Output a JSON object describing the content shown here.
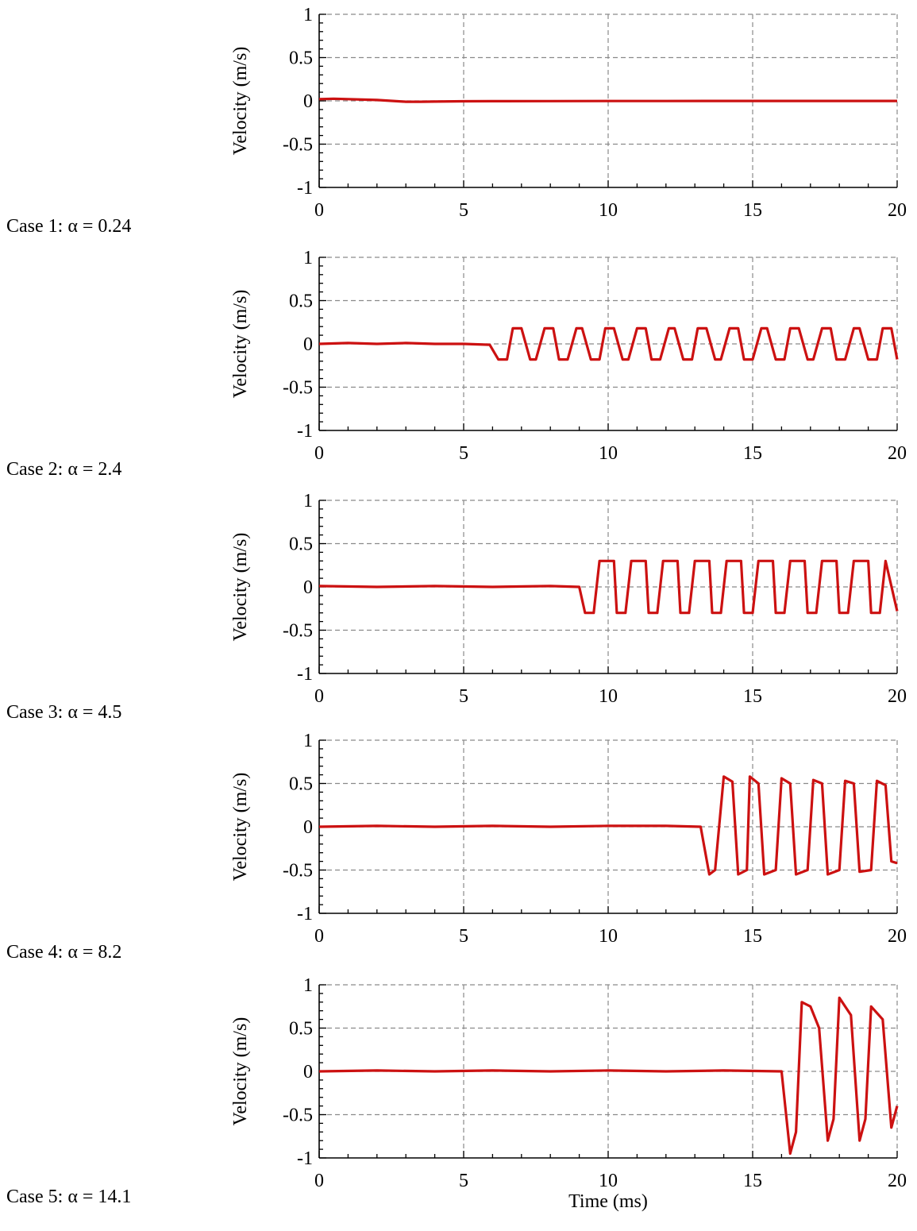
{
  "chart_data": [
    {
      "type": "line",
      "case_label": "Case 1: α = 0.24",
      "ylabel": "Velocity (m/s)",
      "xlabel": "",
      "xlim": [
        0,
        20
      ],
      "ylim": [
        -1,
        1
      ],
      "xticks": [
        0,
        5,
        10,
        15,
        20
      ],
      "yticks": [
        -1,
        -0.5,
        0,
        0.5,
        1
      ],
      "ytick_labels": [
        "-1",
        "-0.5",
        "0",
        "0.5",
        "1"
      ],
      "grid": true,
      "series": [
        {
          "color": "#cc1111",
          "x": [
            0,
            0.5,
            1,
            1.5,
            2,
            2.5,
            3,
            3.5,
            4,
            5,
            6,
            8,
            10,
            12,
            14,
            16,
            18,
            20
          ],
          "y": [
            0.02,
            0.025,
            0.02,
            0.015,
            0.01,
            0.0,
            -0.01,
            -0.01,
            -0.008,
            -0.005,
            -0.004,
            -0.003,
            -0.002,
            -0.002,
            -0.001,
            -0.001,
            -0.001,
            -0.001
          ]
        }
      ]
    },
    {
      "type": "line",
      "case_label": "Case 2: α = 2.4",
      "ylabel": "Velocity (m/s)",
      "xlabel": "",
      "xlim": [
        0,
        20
      ],
      "ylim": [
        -1,
        1
      ],
      "xticks": [
        0,
        5,
        10,
        15,
        20
      ],
      "yticks": [
        -1,
        -0.5,
        0,
        0.5,
        1
      ],
      "ytick_labels": [
        "-1",
        "-0.5",
        "0",
        "0.5",
        "1"
      ],
      "grid": true,
      "series": [
        {
          "color": "#cc1111",
          "x": [
            0,
            1,
            2,
            3,
            4,
            5,
            5.9,
            6.2,
            6.5,
            6.7,
            7.0,
            7.3,
            7.5,
            7.8,
            8.1,
            8.3,
            8.6,
            8.9,
            9.1,
            9.4,
            9.7,
            9.9,
            10.2,
            10.5,
            10.7,
            11.0,
            11.3,
            11.5,
            11.8,
            12.1,
            12.3,
            12.6,
            12.9,
            13.1,
            13.4,
            13.7,
            13.9,
            14.2,
            14.5,
            14.7,
            15.0,
            15.3,
            15.5,
            15.8,
            16.1,
            16.3,
            16.6,
            16.9,
            17.1,
            17.4,
            17.7,
            17.9,
            18.2,
            18.5,
            18.7,
            19.0,
            19.3,
            19.5,
            19.8,
            20.0
          ],
          "y": [
            0.0,
            0.01,
            0.0,
            0.01,
            0.0,
            0.0,
            -0.01,
            -0.18,
            -0.18,
            0.18,
            0.18,
            -0.18,
            -0.18,
            0.18,
            0.18,
            -0.18,
            -0.18,
            0.18,
            0.18,
            -0.18,
            -0.18,
            0.18,
            0.18,
            -0.18,
            -0.18,
            0.18,
            0.18,
            -0.18,
            -0.18,
            0.18,
            0.18,
            -0.18,
            -0.18,
            0.18,
            0.18,
            -0.18,
            -0.18,
            0.18,
            0.18,
            -0.18,
            -0.18,
            0.18,
            0.18,
            -0.18,
            -0.18,
            0.18,
            0.18,
            -0.18,
            -0.18,
            0.18,
            0.18,
            -0.18,
            -0.18,
            0.18,
            0.18,
            -0.18,
            -0.18,
            0.18,
            0.18,
            -0.18
          ]
        }
      ]
    },
    {
      "type": "line",
      "case_label": "Case 3: α = 4.5",
      "ylabel": "Velocity (m/s)",
      "xlabel": "",
      "xlim": [
        0,
        20
      ],
      "ylim": [
        -1,
        1
      ],
      "xticks": [
        0,
        5,
        10,
        15,
        20
      ],
      "yticks": [
        -1,
        -0.5,
        0,
        0.5,
        1
      ],
      "ytick_labels": [
        "-1",
        "-0.5",
        "0",
        "0.5",
        "1"
      ],
      "grid": true,
      "series": [
        {
          "color": "#cc1111",
          "x": [
            0,
            2,
            4,
            6,
            8,
            9.0,
            9.2,
            9.5,
            9.7,
            10.2,
            10.3,
            10.6,
            10.8,
            11.3,
            11.4,
            11.7,
            11.9,
            12.4,
            12.5,
            12.8,
            13.0,
            13.5,
            13.6,
            13.9,
            14.1,
            14.6,
            14.7,
            15.0,
            15.2,
            15.7,
            15.8,
            16.1,
            16.3,
            16.8,
            16.9,
            17.2,
            17.4,
            17.9,
            18.0,
            18.3,
            18.5,
            19.0,
            19.1,
            19.4,
            19.6,
            20.0
          ],
          "y": [
            0.01,
            0.0,
            0.01,
            0.0,
            0.01,
            0.0,
            -0.3,
            -0.3,
            0.3,
            0.3,
            -0.3,
            -0.3,
            0.3,
            0.3,
            -0.3,
            -0.3,
            0.3,
            0.3,
            -0.3,
            -0.3,
            0.3,
            0.3,
            -0.3,
            -0.3,
            0.3,
            0.3,
            -0.3,
            -0.3,
            0.3,
            0.3,
            -0.3,
            -0.3,
            0.3,
            0.3,
            -0.3,
            -0.3,
            0.3,
            0.3,
            -0.3,
            -0.3,
            0.3,
            0.3,
            -0.3,
            -0.3,
            0.3,
            -0.28
          ]
        }
      ]
    },
    {
      "type": "line",
      "case_label": "Case 4: α = 8.2",
      "ylabel": "Velocity (m/s)",
      "xlabel": "",
      "xlim": [
        0,
        20
      ],
      "ylim": [
        -1,
        1
      ],
      "xticks": [
        0,
        5,
        10,
        15,
        20
      ],
      "yticks": [
        -1,
        -0.5,
        0,
        0.5,
        1
      ],
      "ytick_labels": [
        "-1",
        "-0.5",
        "0",
        "0.5",
        "1"
      ],
      "grid": true,
      "series": [
        {
          "color": "#cc1111",
          "x": [
            0,
            2,
            4,
            6,
            8,
            10,
            12,
            13.2,
            13.5,
            13.7,
            14.0,
            14.3,
            14.5,
            14.8,
            14.9,
            15.2,
            15.4,
            15.8,
            16.0,
            16.3,
            16.5,
            16.9,
            17.1,
            17.4,
            17.6,
            18.0,
            18.2,
            18.5,
            18.7,
            19.1,
            19.3,
            19.6,
            19.8,
            20.0
          ],
          "y": [
            0.0,
            0.01,
            0.0,
            0.01,
            0.0,
            0.01,
            0.01,
            0.0,
            -0.55,
            -0.5,
            0.58,
            0.52,
            -0.55,
            -0.5,
            0.58,
            0.5,
            -0.55,
            -0.5,
            0.56,
            0.5,
            -0.55,
            -0.5,
            0.54,
            0.5,
            -0.55,
            -0.5,
            0.53,
            0.5,
            -0.52,
            -0.5,
            0.53,
            0.48,
            -0.4,
            -0.42
          ]
        }
      ]
    },
    {
      "type": "line",
      "case_label": "Case 5: α = 14.1",
      "ylabel": "Velocity (m/s)",
      "xlabel": "Time (ms)",
      "xlim": [
        0,
        20
      ],
      "ylim": [
        -1,
        1
      ],
      "xticks": [
        0,
        5,
        10,
        15,
        20
      ],
      "yticks": [
        -1,
        -0.5,
        0,
        0.5,
        1
      ],
      "ytick_labels": [
        "-1",
        "-0.5",
        "0",
        "0.5",
        "1"
      ],
      "grid": true,
      "series": [
        {
          "color": "#cc1111",
          "x": [
            0,
            2,
            4,
            6,
            8,
            10,
            12,
            14,
            16,
            16.3,
            16.5,
            16.7,
            17.0,
            17.3,
            17.6,
            17.8,
            18.0,
            18.4,
            18.7,
            18.9,
            19.1,
            19.5,
            19.8,
            20.0
          ],
          "y": [
            0.0,
            0.01,
            0.0,
            0.01,
            0.0,
            0.01,
            0.0,
            0.01,
            0.0,
            -0.95,
            -0.7,
            0.8,
            0.75,
            0.5,
            -0.8,
            -0.55,
            0.85,
            0.65,
            -0.8,
            -0.55,
            0.75,
            0.6,
            -0.65,
            -0.4
          ]
        }
      ]
    }
  ]
}
